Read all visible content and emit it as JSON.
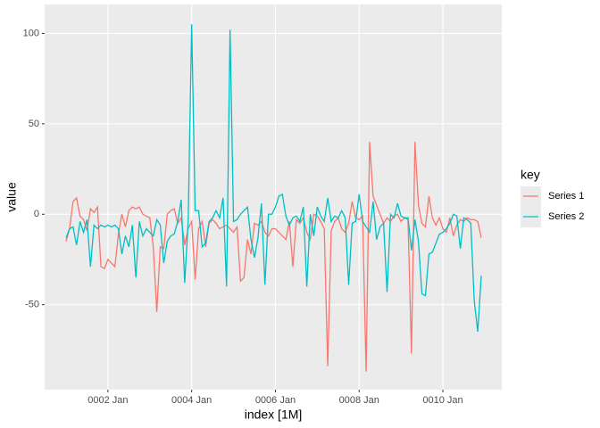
{
  "chart_data": {
    "type": "line",
    "x_label": "index [1M]",
    "y_label": "value",
    "legend_title": "key",
    "x": [
      "0001 Jan",
      "0001 Feb",
      "0001 Mar",
      "0001 Apr",
      "0001 May",
      "0001 Jun",
      "0001 Jul",
      "0001 Aug",
      "0001 Sep",
      "0001 Oct",
      "0001 Nov",
      "0001 Dec",
      "0002 Jan",
      "0002 Feb",
      "0002 Mar",
      "0002 Apr",
      "0002 May",
      "0002 Jun",
      "0002 Jul",
      "0002 Aug",
      "0002 Sep",
      "0002 Oct",
      "0002 Nov",
      "0002 Dec",
      "0003 Jan",
      "0003 Feb",
      "0003 Mar",
      "0003 Apr",
      "0003 May",
      "0003 Jun",
      "0003 Jul",
      "0003 Aug",
      "0003 Sep",
      "0003 Oct",
      "0003 Nov",
      "0003 Dec",
      "0004 Jan",
      "0004 Feb",
      "0004 Mar",
      "0004 Apr",
      "0004 May",
      "0004 Jun",
      "0004 Jul",
      "0004 Aug",
      "0004 Sep",
      "0004 Oct",
      "0004 Nov",
      "0004 Dec",
      "0005 Jan",
      "0005 Feb",
      "0005 Mar",
      "0005 Apr",
      "0005 May",
      "0005 Jun",
      "0005 Jul",
      "0005 Aug",
      "0005 Sep",
      "0005 Oct",
      "0005 Nov",
      "0005 Dec",
      "0006 Jan",
      "0006 Feb",
      "0006 Mar",
      "0006 Apr",
      "0006 May",
      "0006 Jun",
      "0006 Jul",
      "0006 Aug",
      "0006 Sep",
      "0006 Oct",
      "0006 Nov",
      "0006 Dec",
      "0007 Jan",
      "0007 Feb",
      "0007 Mar",
      "0007 Apr",
      "0007 May",
      "0007 Jun",
      "0007 Jul",
      "0007 Aug",
      "0007 Sep",
      "0007 Oct",
      "0007 Nov",
      "0007 Dec",
      "0008 Jan",
      "0008 Feb",
      "0008 Mar",
      "0008 Apr",
      "0008 May",
      "0008 Jun",
      "0008 Jul",
      "0008 Aug",
      "0008 Sep",
      "0008 Oct",
      "0008 Nov",
      "0008 Dec",
      "0009 Jan",
      "0009 Feb",
      "0009 Mar",
      "0009 Apr",
      "0009 May",
      "0009 Jun",
      "0009 Jul",
      "0009 Aug",
      "0009 Sep",
      "0009 Oct",
      "0009 Nov",
      "0009 Dec",
      "0010 Jan",
      "0010 Feb",
      "0010 Mar",
      "0010 Apr",
      "0010 May",
      "0010 Jun",
      "0010 Jul",
      "0010 Aug",
      "0010 Sep",
      "0010 Oct",
      "0010 Nov",
      "0010 Dec"
    ],
    "xticks": [
      "0002 Jan",
      "0004 Jan",
      "0006 Jan",
      "0008 Jan",
      "0010 Jan"
    ],
    "ylim": [
      -97,
      116
    ],
    "yticks": [
      -50,
      0,
      50,
      100
    ],
    "grid": true,
    "series": [
      {
        "name": "Series 1",
        "color": "#f8766d",
        "values": [
          -15,
          -8,
          7,
          9,
          -1,
          -3,
          -9,
          3,
          1,
          4,
          -29,
          -30,
          -25,
          -27,
          -29,
          -11,
          0,
          -7,
          2,
          4,
          3,
          4,
          0,
          -1,
          -2,
          -18,
          -54,
          -18,
          -19,
          0,
          2,
          3,
          -5,
          -2,
          -17,
          -8,
          -4,
          -36,
          -8,
          -4,
          -18,
          -5,
          -3,
          -5,
          -8,
          -7,
          -6,
          -8,
          -10,
          -7,
          -37,
          -35,
          -14,
          -22,
          -5,
          -6,
          -4,
          -10,
          -12,
          -8,
          -8,
          -10,
          -12,
          -14,
          -4,
          -29,
          -3,
          -5,
          -2,
          -10,
          -14,
          0,
          -1,
          -4,
          -8,
          -84,
          -9,
          -4,
          -2,
          -8,
          -10,
          -5,
          7,
          -2,
          -3,
          -1,
          -87,
          40,
          10,
          5,
          0,
          -5,
          -2,
          -4,
          -1,
          0,
          -4,
          -2,
          -3,
          -77,
          40,
          5,
          -5,
          -7,
          10,
          -2,
          -6,
          -2,
          -8,
          -10,
          -2,
          -12,
          -6,
          -3,
          -4,
          -2,
          -3,
          -3,
          -4,
          -13
        ]
      },
      {
        "name": "Series 2",
        "color": "#00bfc4",
        "values": [
          -13,
          -8,
          -7,
          -17,
          -4,
          -10,
          -3,
          -29,
          -6,
          -8,
          -6,
          -7,
          -6,
          -7,
          -6,
          -8,
          -22,
          -12,
          -18,
          -6,
          -35,
          -4,
          -12,
          -8,
          -10,
          -12,
          -3,
          -6,
          -27,
          -15,
          -12,
          -11,
          -4,
          8,
          -38,
          -4,
          105,
          2,
          2,
          -18,
          -16,
          -4,
          -2,
          2,
          -2,
          9,
          -40,
          102,
          -4,
          -3,
          0,
          2,
          4,
          -14,
          -24,
          -13,
          6,
          -39,
          0,
          0,
          4,
          10,
          11,
          -1,
          -6,
          -2,
          -1,
          -4,
          4,
          -40,
          0,
          -12,
          4,
          -1,
          -4,
          9,
          -4,
          -1,
          -2,
          2,
          -2,
          -39,
          -5,
          -4,
          11,
          -4,
          -7,
          -10,
          7,
          -14,
          -7,
          -5,
          -43,
          0,
          -2,
          6,
          -1,
          -2,
          -2,
          -20,
          -3,
          -15,
          -44,
          -45,
          -22,
          -21,
          -16,
          -11,
          -10,
          -8,
          -5,
          0,
          -1,
          -19,
          -2,
          -3,
          -5,
          -48,
          -65,
          -34
        ]
      }
    ],
    "legend": "right"
  }
}
